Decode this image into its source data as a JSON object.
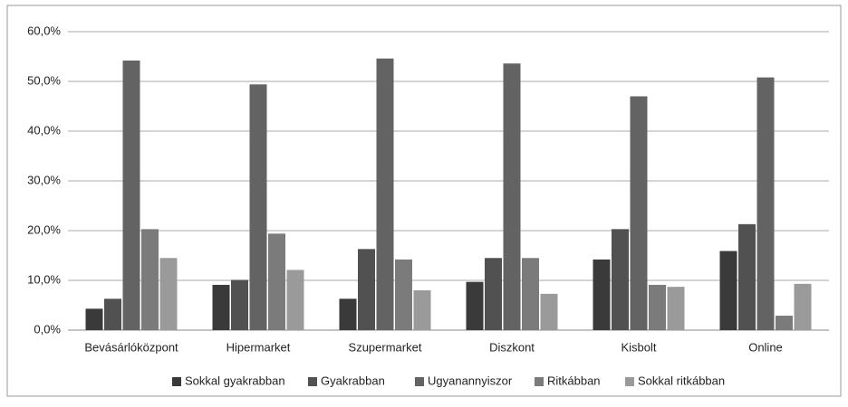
{
  "chart_data": {
    "type": "bar",
    "categories": [
      "Bevásárlóközpont",
      "Hipermarket",
      "Szupermarket",
      "Diszkont",
      "Kisbolt",
      "Online"
    ],
    "series": [
      {
        "name": "Sokkal gyakrabban",
        "color": "#3a3a3a",
        "values": [
          4.3,
          9.1,
          6.3,
          9.7,
          14.2,
          15.9
        ]
      },
      {
        "name": "Gyakrabban",
        "color": "#515151",
        "values": [
          6.3,
          10.1,
          16.3,
          14.5,
          20.3,
          21.3
        ]
      },
      {
        "name": "Ugyanannyiszor",
        "color": "#636363",
        "values": [
          54.2,
          49.4,
          54.6,
          53.6,
          47.0,
          50.8
        ]
      },
      {
        "name": "Ritkábban",
        "color": "#7b7b7b",
        "values": [
          20.3,
          19.4,
          14.2,
          14.5,
          9.1,
          2.9
        ]
      },
      {
        "name": "Sokkal ritkábban",
        "color": "#9a9a9a",
        "values": [
          14.5,
          12.1,
          8.0,
          7.3,
          8.7,
          9.3
        ]
      }
    ],
    "ylim": [
      0,
      60
    ],
    "yticks": [
      {
        "value": 0,
        "label": "0,0%"
      },
      {
        "value": 10,
        "label": "10,0%"
      },
      {
        "value": 20,
        "label": "20,0%"
      },
      {
        "value": 30,
        "label": "30,0%"
      },
      {
        "value": 40,
        "label": "40,0%"
      },
      {
        "value": 50,
        "label": "50,0%"
      },
      {
        "value": 60,
        "label": "60,0%"
      }
    ],
    "grid": true,
    "legend": "bottom"
  }
}
